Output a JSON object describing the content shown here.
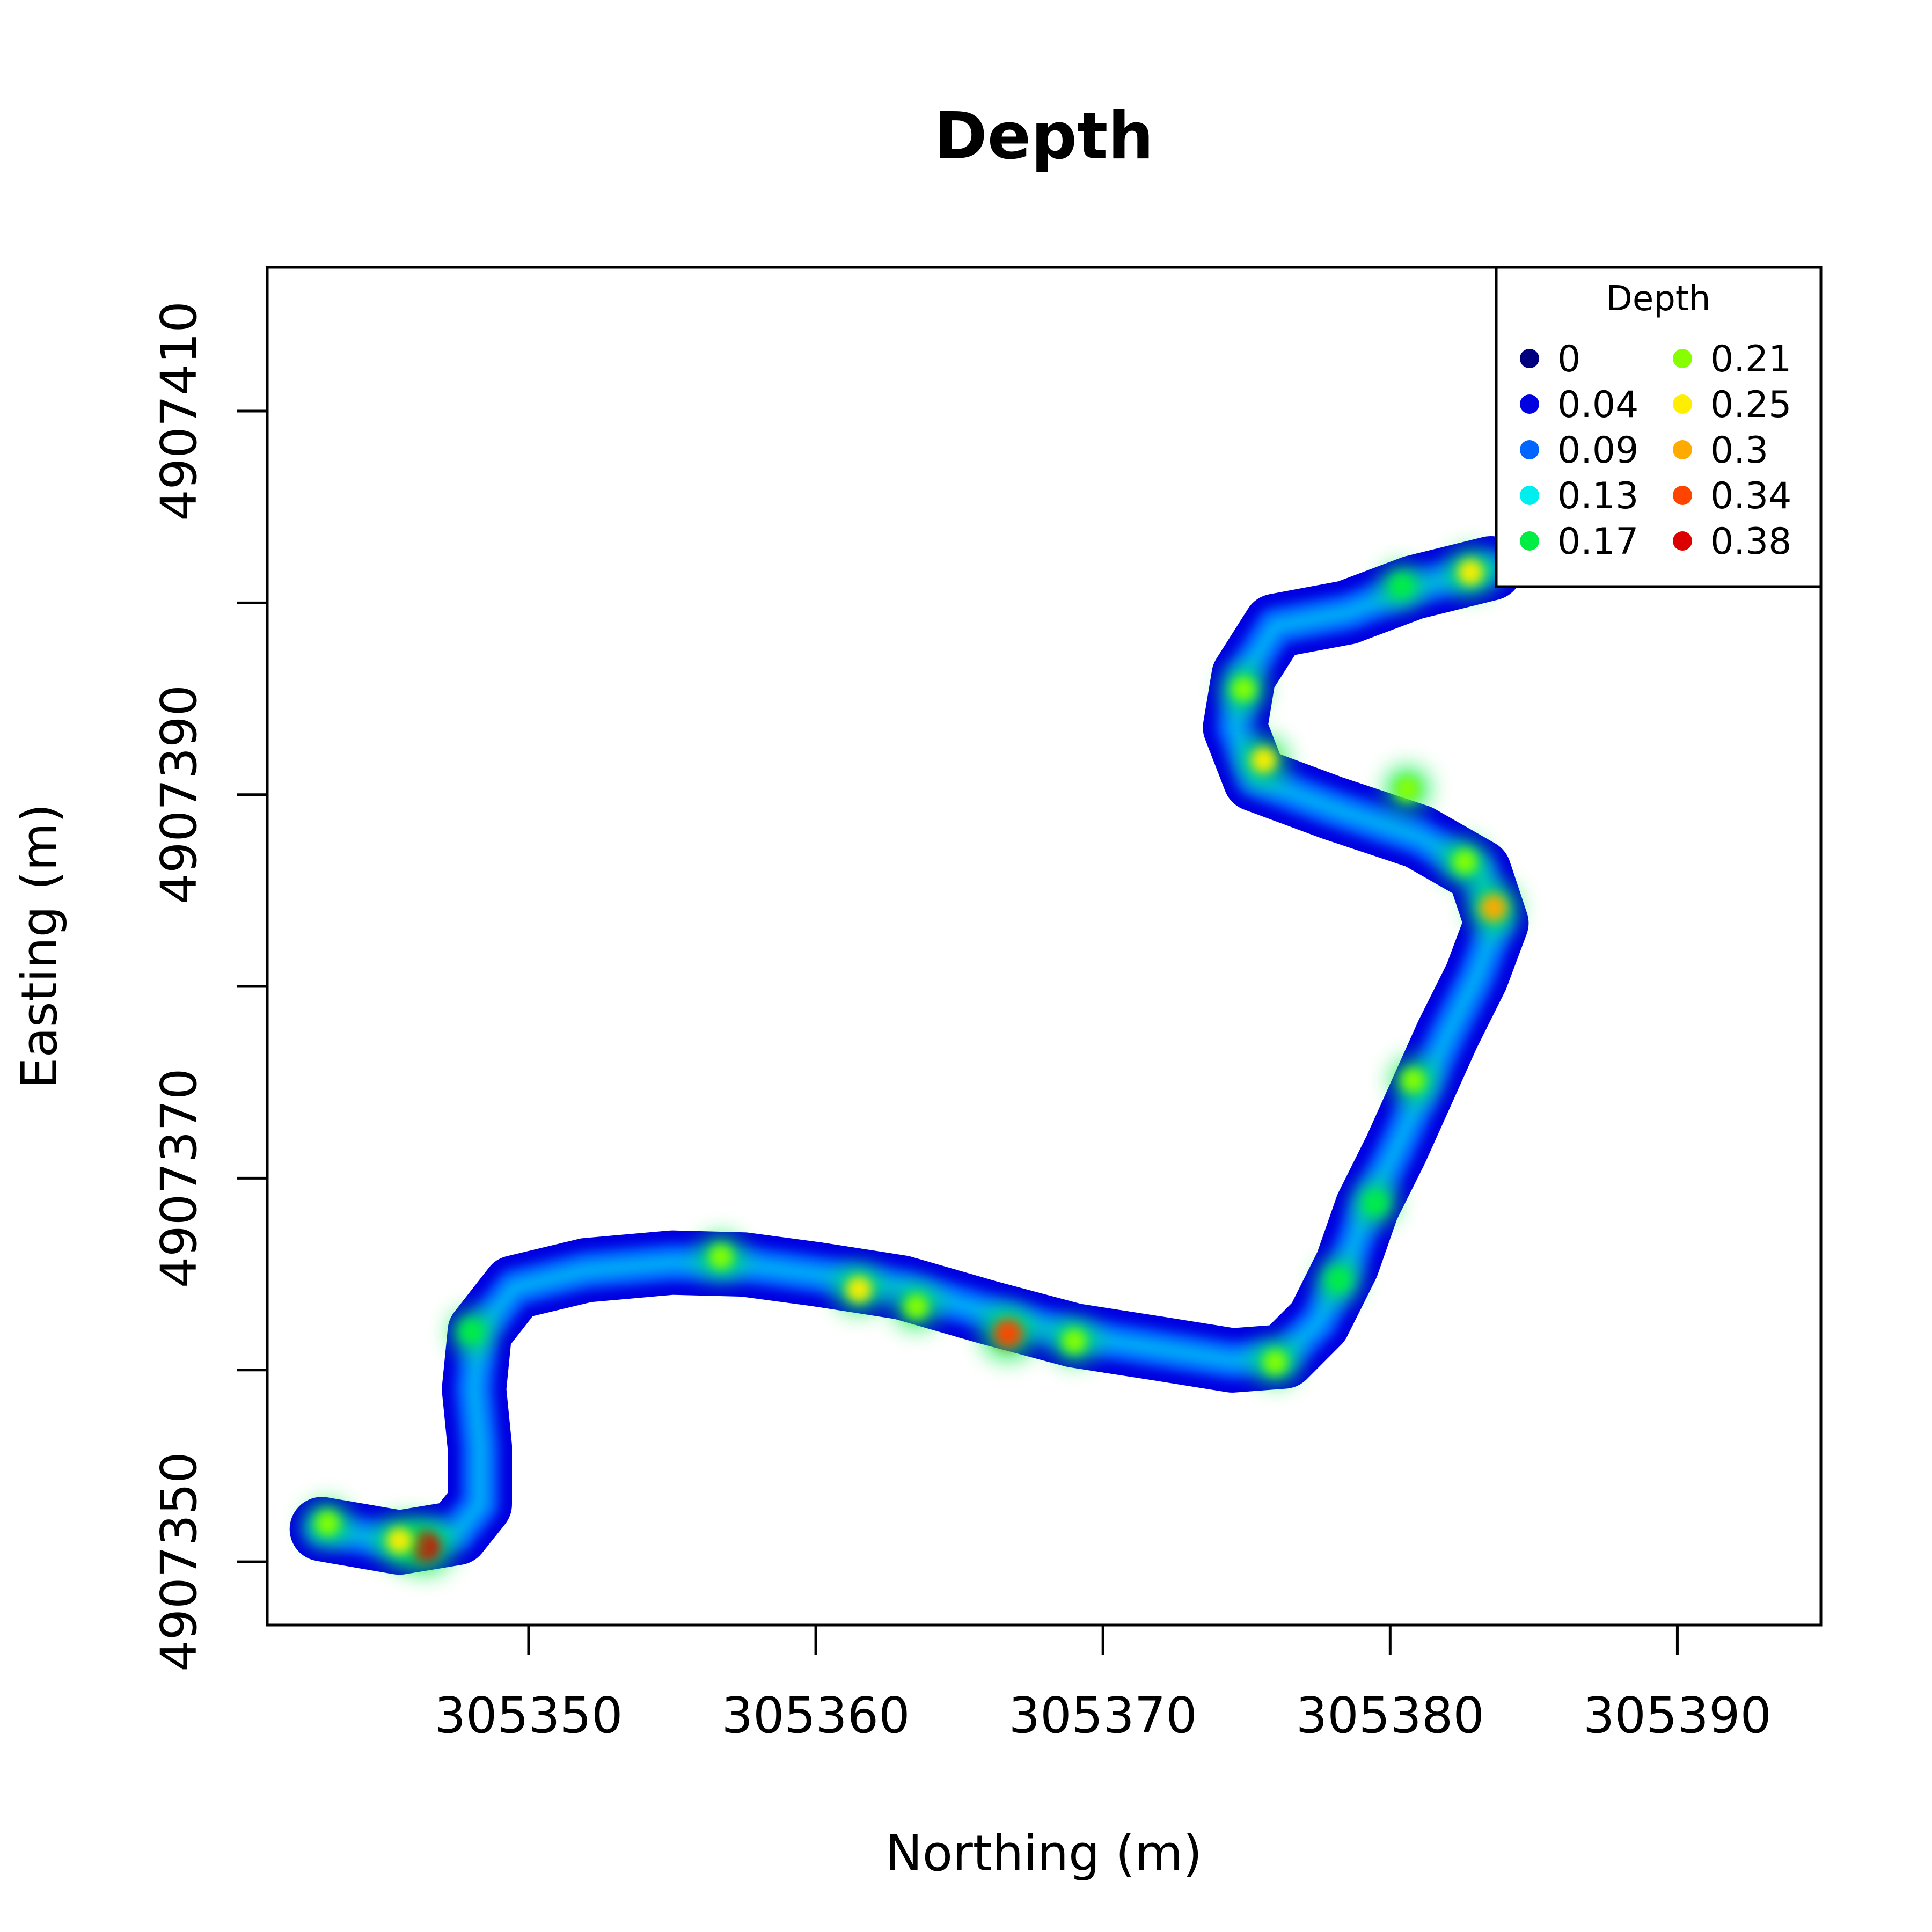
{
  "chart_data": {
    "type": "heatmap",
    "title": "Depth",
    "xlabel": "Northing (m)",
    "ylabel": "Easting (m)",
    "xlim": [
      305340.9,
      305395.0
    ],
    "ylim": [
      4907346.7,
      4907417.5
    ],
    "x_ticks": [
      305350,
      305360,
      305370,
      305380,
      305390
    ],
    "y_ticks": [
      4907350,
      4907360,
      4907370,
      4907380,
      4907390,
      4907400,
      4907410
    ],
    "y_tick_labels": [
      "4907350",
      "",
      "4907370",
      "",
      "4907390",
      "",
      "4907410"
    ],
    "grid": false,
    "legend": {
      "title": "Depth",
      "position": "top-right",
      "columns": 2,
      "entries": [
        {
          "label": "0",
          "color": "#00007F"
        },
        {
          "label": "0.04",
          "color": "#0000E0"
        },
        {
          "label": "0.09",
          "color": "#0066FF"
        },
        {
          "label": "0.13",
          "color": "#00EEEE"
        },
        {
          "label": "0.17",
          "color": "#00EE44"
        },
        {
          "label": "0.21",
          "color": "#88FF00"
        },
        {
          "label": "0.25",
          "color": "#FFEE00"
        },
        {
          "label": "0.3",
          "color": "#FFAA00"
        },
        {
          "label": "0.34",
          "color": "#FF4400"
        },
        {
          "label": "0.38",
          "color": "#DD0000"
        }
      ]
    },
    "channel_centerline": [
      {
        "x": 305342.8,
        "y": 4907351.7
      },
      {
        "x": 305345.5,
        "y": 4907351.0
      },
      {
        "x": 305347.5,
        "y": 4907351.5
      },
      {
        "x": 305348.3,
        "y": 4907353.0
      },
      {
        "x": 305348.3,
        "y": 4907356.0
      },
      {
        "x": 305348.1,
        "y": 4907359.0
      },
      {
        "x": 305348.3,
        "y": 4907362.0
      },
      {
        "x": 305349.5,
        "y": 4907364.3
      },
      {
        "x": 305352.0,
        "y": 4907365.2
      },
      {
        "x": 305355.0,
        "y": 4907365.6
      },
      {
        "x": 305357.5,
        "y": 4907365.5
      },
      {
        "x": 305360.0,
        "y": 4907365.0
      },
      {
        "x": 305363.0,
        "y": 4907364.3
      },
      {
        "x": 305366.0,
        "y": 4907363.0
      },
      {
        "x": 305369.0,
        "y": 4907361.8
      },
      {
        "x": 305372.0,
        "y": 4907361.1
      },
      {
        "x": 305374.5,
        "y": 4907360.5
      },
      {
        "x": 305376.3,
        "y": 4907360.7
      },
      {
        "x": 305377.5,
        "y": 4907362.5
      },
      {
        "x": 305378.5,
        "y": 4907365.5
      },
      {
        "x": 305379.2,
        "y": 4907368.5
      },
      {
        "x": 305380.2,
        "y": 4907371.5
      },
      {
        "x": 305381.1,
        "y": 4907374.5
      },
      {
        "x": 305382.0,
        "y": 4907377.5
      },
      {
        "x": 305383.0,
        "y": 4907380.5
      },
      {
        "x": 305383.7,
        "y": 4907383.3
      },
      {
        "x": 305383.1,
        "y": 4907386.0
      },
      {
        "x": 305381.0,
        "y": 4907387.8
      },
      {
        "x": 305378.0,
        "y": 4907389.3
      },
      {
        "x": 305375.3,
        "y": 4907390.8
      },
      {
        "x": 305374.6,
        "y": 4907393.5
      },
      {
        "x": 305374.9,
        "y": 4907396.2
      },
      {
        "x": 305376.0,
        "y": 4907398.8
      },
      {
        "x": 305378.5,
        "y": 4907399.5
      },
      {
        "x": 305380.8,
        "y": 4907400.8
      },
      {
        "x": 305383.5,
        "y": 4907401.8
      }
    ],
    "depth_hotspots": [
      {
        "x": 305346.4,
        "y": 4907350.8,
        "depth": 0.38
      },
      {
        "x": 305345.5,
        "y": 4907351.1,
        "depth": 0.25
      },
      {
        "x": 305343.0,
        "y": 4907352.0,
        "depth": 0.21
      },
      {
        "x": 305348.0,
        "y": 4907362.0,
        "depth": 0.17
      },
      {
        "x": 305356.7,
        "y": 4907365.9,
        "depth": 0.21
      },
      {
        "x": 305361.5,
        "y": 4907364.2,
        "depth": 0.25
      },
      {
        "x": 305363.5,
        "y": 4907363.3,
        "depth": 0.21
      },
      {
        "x": 305366.7,
        "y": 4907361.9,
        "depth": 0.34
      },
      {
        "x": 305369.0,
        "y": 4907361.5,
        "depth": 0.21
      },
      {
        "x": 305376.0,
        "y": 4907360.4,
        "depth": 0.21
      },
      {
        "x": 305378.2,
        "y": 4907364.7,
        "depth": 0.17
      },
      {
        "x": 305379.5,
        "y": 4907368.7,
        "depth": 0.17
      },
      {
        "x": 305380.8,
        "y": 4907375.1,
        "depth": 0.21
      },
      {
        "x": 305383.6,
        "y": 4907384.1,
        "depth": 0.3
      },
      {
        "x": 305382.6,
        "y": 4907386.5,
        "depth": 0.21
      },
      {
        "x": 305380.6,
        "y": 4907390.3,
        "depth": 0.21
      },
      {
        "x": 305375.6,
        "y": 4907391.8,
        "depth": 0.25
      },
      {
        "x": 305374.9,
        "y": 4907395.5,
        "depth": 0.21
      },
      {
        "x": 305380.4,
        "y": 4907400.9,
        "depth": 0.17
      },
      {
        "x": 305382.8,
        "y": 4907401.6,
        "depth": 0.25
      }
    ]
  }
}
